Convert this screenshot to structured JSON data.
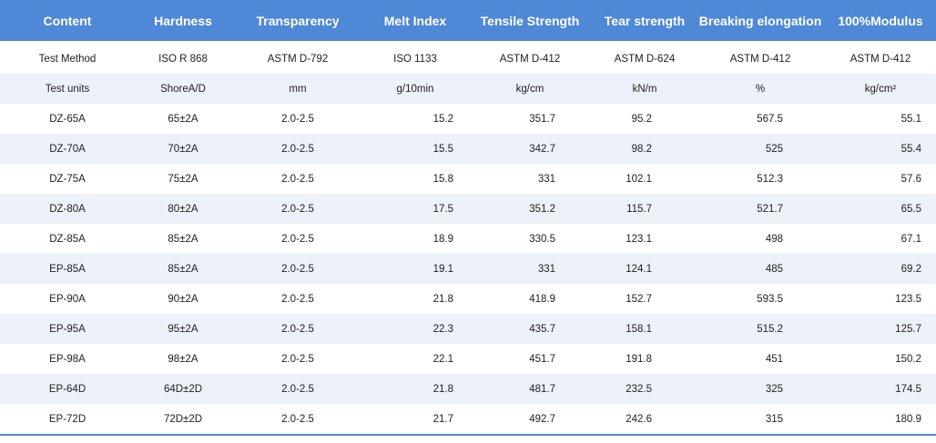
{
  "columns": [
    "Content",
    "Hardness",
    "Transparency",
    "Melt Index",
    "Tensile Strength",
    "Tear strength",
    "Breaking elongation",
    "100%Modulus"
  ],
  "rows": [
    [
      "Test Method",
      "ISO R 868",
      "ASTM D-792",
      "ISO 1133",
      "ASTM D-412",
      "ASTM D-624",
      "ASTM D-412",
      "ASTM D-412"
    ],
    [
      "Test units",
      "ShoreA/D",
      "mm",
      "g/10min",
      "kg/cm",
      "kN/m",
      "%",
      "kg/cm²"
    ],
    [
      "DZ-65A",
      "65±2A",
      "2.0-2.5",
      "15.2",
      "351.7",
      "95.2",
      "567.5",
      "55.1"
    ],
    [
      "DZ-70A",
      "70±2A",
      "2.0-2.5",
      "15.5",
      "342.7",
      "98.2",
      "525",
      "55.4"
    ],
    [
      "DZ-75A",
      "75±2A",
      "2.0-2.5",
      "15.8",
      "331",
      "102.1",
      "512.3",
      "57.6"
    ],
    [
      "DZ-80A",
      "80±2A",
      "2.0-2.5",
      "17.5",
      "351.2",
      "115.7",
      "521.7",
      "65.5"
    ],
    [
      "DZ-85A",
      "85±2A",
      "2.0-2.5",
      "18.9",
      "330.5",
      "123.1",
      "498",
      "67.1"
    ],
    [
      "EP-85A",
      "85±2A",
      "2.0-2.5",
      "19.1",
      "331",
      "124.1",
      "485",
      "69.2"
    ],
    [
      "EP-90A",
      "90±2A",
      "2.0-2.5",
      "21.8",
      "418.9",
      "152.7",
      "593.5",
      "123.5"
    ],
    [
      "EP-95A",
      "95±2A",
      "2.0-2.5",
      "22.3",
      "435.7",
      "158.1",
      "515.2",
      "125.7"
    ],
    [
      "EP-98A",
      "98±2A",
      "2.0-2.5",
      "22.1",
      "451.7",
      "191.8",
      "451",
      "150.2"
    ],
    [
      "EP-64D",
      "64D±2D",
      "2.0-2.5",
      "21.8",
      "481.7",
      "232.5",
      "325",
      "174.5"
    ],
    [
      "EP-72D",
      "72D±2D",
      "2.0-2.5",
      "21.7",
      "492.7",
      "242.6",
      "315",
      "180.9"
    ]
  ]
}
